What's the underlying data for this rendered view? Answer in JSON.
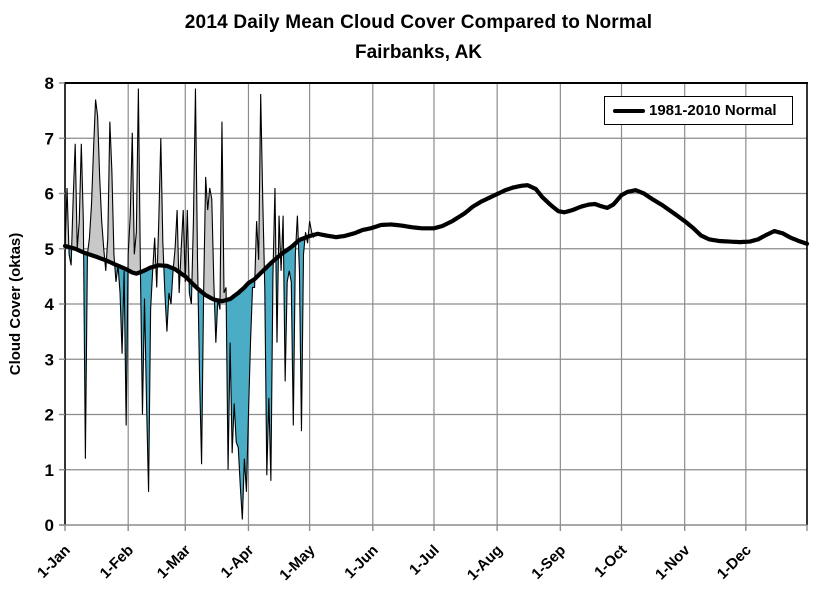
{
  "title": {
    "line1": "2014 Daily Mean Cloud Cover Compared to Normal",
    "line2": "Fairbanks, AK"
  },
  "legend": {
    "label": "1981-2010 Normal"
  },
  "chart_data": {
    "type": "line",
    "title": "2014 Daily Mean Cloud Cover Compared to Normal",
    "subtitle": "Fairbanks, AK",
    "xlabel": "",
    "ylabel": "Cloud Cover (oktas)",
    "ylim": [
      0,
      8
    ],
    "y_ticks": [
      0,
      1,
      2,
      3,
      4,
      5,
      6,
      7,
      8
    ],
    "x_tick_labels": [
      "1-Jan",
      "1-Feb",
      "1-Mar",
      "1-Apr",
      "1-May",
      "1-Jun",
      "1-Jul",
      "1-Aug",
      "1-Sep",
      "1-Oct",
      "1-Nov",
      "1-Dec"
    ],
    "x_tick_days": [
      1,
      32,
      60,
      91,
      121,
      152,
      182,
      213,
      244,
      274,
      305,
      335
    ],
    "days_in_year": 365,
    "grid": true,
    "legend_position": "top-right",
    "colors": {
      "above_normal_fill": "#C8C8C8",
      "below_normal_fill": "#4BACC6",
      "normal_line": "#000000",
      "daily_line": "#000000",
      "gridline": "#8C8C8C",
      "axis": "#8C8C8C",
      "border": "#000000"
    },
    "series": [
      {
        "name": "1981-2010 Normal",
        "role": "normal",
        "points": [
          [
            1,
            5.05
          ],
          [
            6,
            5.0
          ],
          [
            11,
            4.92
          ],
          [
            16,
            4.86
          ],
          [
            21,
            4.79
          ],
          [
            26,
            4.71
          ],
          [
            31,
            4.63
          ],
          [
            34,
            4.57
          ],
          [
            36,
            4.55
          ],
          [
            39,
            4.59
          ],
          [
            43,
            4.66
          ],
          [
            47,
            4.7
          ],
          [
            51,
            4.69
          ],
          [
            55,
            4.63
          ],
          [
            58,
            4.55
          ],
          [
            60,
            4.5
          ],
          [
            63,
            4.39
          ],
          [
            66,
            4.28
          ],
          [
            70,
            4.16
          ],
          [
            74,
            4.08
          ],
          [
            78,
            4.05
          ],
          [
            82,
            4.09
          ],
          [
            86,
            4.2
          ],
          [
            89,
            4.3
          ],
          [
            91,
            4.38
          ],
          [
            94,
            4.45
          ],
          [
            97,
            4.56
          ],
          [
            102,
            4.74
          ],
          [
            107,
            4.9
          ],
          [
            112,
            5.03
          ],
          [
            116,
            5.16
          ],
          [
            121,
            5.23
          ],
          [
            125,
            5.27
          ],
          [
            129,
            5.24
          ],
          [
            134,
            5.21
          ],
          [
            138,
            5.23
          ],
          [
            143,
            5.28
          ],
          [
            147,
            5.34
          ],
          [
            151,
            5.37
          ],
          [
            156,
            5.43
          ],
          [
            161,
            5.44
          ],
          [
            166,
            5.42
          ],
          [
            171,
            5.39
          ],
          [
            176,
            5.37
          ],
          [
            182,
            5.37
          ],
          [
            186,
            5.41
          ],
          [
            191,
            5.5
          ],
          [
            197,
            5.64
          ],
          [
            201,
            5.76
          ],
          [
            205,
            5.85
          ],
          [
            209,
            5.92
          ],
          [
            213,
            5.99
          ],
          [
            217,
            6.06
          ],
          [
            221,
            6.11
          ],
          [
            225,
            6.14
          ],
          [
            228,
            6.15
          ],
          [
            232,
            6.08
          ],
          [
            235,
            5.94
          ],
          [
            239,
            5.8
          ],
          [
            243,
            5.68
          ],
          [
            246,
            5.66
          ],
          [
            250,
            5.7
          ],
          [
            254,
            5.76
          ],
          [
            258,
            5.8
          ],
          [
            261,
            5.81
          ],
          [
            264,
            5.77
          ],
          [
            267,
            5.74
          ],
          [
            270,
            5.8
          ],
          [
            274,
            5.97
          ],
          [
            277,
            6.03
          ],
          [
            281,
            6.06
          ],
          [
            285,
            6.0
          ],
          [
            289,
            5.9
          ],
          [
            294,
            5.79
          ],
          [
            299,
            5.66
          ],
          [
            305,
            5.5
          ],
          [
            309,
            5.38
          ],
          [
            313,
            5.24
          ],
          [
            317,
            5.17
          ],
          [
            322,
            5.14
          ],
          [
            327,
            5.13
          ],
          [
            332,
            5.12
          ],
          [
            337,
            5.13
          ],
          [
            341,
            5.17
          ],
          [
            345,
            5.25
          ],
          [
            349,
            5.32
          ],
          [
            353,
            5.28
          ],
          [
            357,
            5.2
          ],
          [
            361,
            5.14
          ],
          [
            365,
            5.09
          ]
        ]
      },
      {
        "name": "2014 Daily Mean Cloud Cover",
        "role": "daily",
        "start_day": 1,
        "values": [
          5.0,
          6.1,
          4.9,
          4.7,
          5.9,
          6.9,
          5.0,
          5.5,
          6.9,
          5.5,
          1.2,
          4.9,
          5.2,
          5.8,
          6.8,
          7.7,
          7.4,
          6.3,
          5.5,
          5.0,
          4.6,
          5.2,
          7.3,
          6.4,
          4.9,
          4.4,
          4.7,
          4.2,
          3.1,
          4.6,
          1.8,
          4.9,
          5.6,
          7.1,
          4.9,
          5.3,
          7.9,
          4.6,
          2.0,
          4.1,
          2.2,
          0.6,
          3.9,
          4.6,
          5.2,
          4.3,
          5.5,
          7.0,
          5.1,
          4.2,
          3.5,
          4.2,
          4.0,
          4.6,
          5.0,
          5.7,
          4.2,
          5.0,
          5.7,
          4.4,
          5.7,
          4.2,
          4.0,
          5.5,
          7.9,
          4.8,
          2.7,
          1.1,
          4.2,
          6.3,
          5.7,
          6.1,
          5.9,
          4.4,
          3.3,
          4.1,
          3.9,
          7.3,
          4.2,
          4.3,
          1.0,
          3.3,
          1.3,
          2.2,
          1.5,
          1.4,
          0.7,
          0.1,
          1.2,
          0.6,
          2.0,
          3.3,
          4.3,
          4.3,
          5.5,
          4.8,
          7.8,
          5.9,
          4.3,
          0.9,
          2.3,
          0.8,
          4.5,
          6.1,
          3.3,
          5.6,
          4.6,
          5.6,
          2.6,
          4.4,
          4.6,
          4.4,
          1.8,
          4.9,
          5.6,
          4.6,
          1.7,
          4.9,
          5.3,
          5.1,
          5.5,
          5.3,
          5.2
        ]
      }
    ]
  }
}
